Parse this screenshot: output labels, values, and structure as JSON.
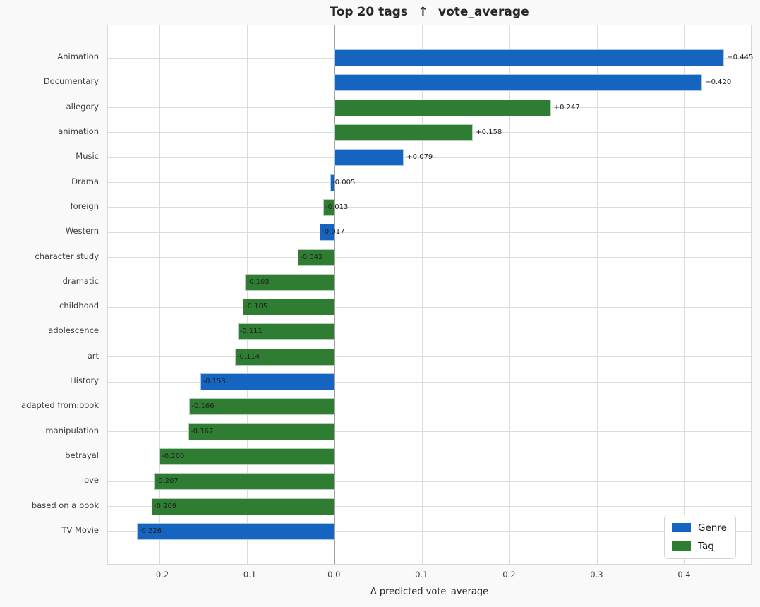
{
  "chart_data": {
    "type": "bar",
    "orientation": "horizontal",
    "title": "Top 20 tags  ↑  vote_average",
    "xlabel": "Δ predicted vote_average",
    "ylabel": "",
    "xlim": [
      -0.259,
      0.477
    ],
    "grid": true,
    "x_ticks": [
      {
        "value": -0.2,
        "label": "−0.2"
      },
      {
        "value": -0.1,
        "label": "−0.1"
      },
      {
        "value": 0.0,
        "label": "0.0"
      },
      {
        "value": 0.1,
        "label": "0.1"
      },
      {
        "value": 0.2,
        "label": "0.2"
      },
      {
        "value": 0.3,
        "label": "0.3"
      },
      {
        "value": 0.4,
        "label": "0.4"
      }
    ],
    "categories": [
      "Animation",
      "Documentary",
      "allegory",
      "animation",
      "Music",
      "Drama",
      "foreign",
      "Western",
      "character study",
      "dramatic",
      "childhood",
      "adolescence",
      "art",
      "History",
      "adapted from:book",
      "manipulation",
      "betrayal",
      "love",
      "based on a book",
      "TV Movie"
    ],
    "items": [
      {
        "label": "Animation",
        "value": 0.445,
        "value_label": "+0.445",
        "type": "genre"
      },
      {
        "label": "Documentary",
        "value": 0.42,
        "value_label": "+0.420",
        "type": "genre"
      },
      {
        "label": "allegory",
        "value": 0.247,
        "value_label": "+0.247",
        "type": "tag"
      },
      {
        "label": "animation",
        "value": 0.158,
        "value_label": "+0.158",
        "type": "tag"
      },
      {
        "label": "Music",
        "value": 0.079,
        "value_label": "+0.079",
        "type": "genre"
      },
      {
        "label": "Drama",
        "value": -0.005,
        "value_label": "-0.005",
        "type": "genre"
      },
      {
        "label": "foreign",
        "value": -0.013,
        "value_label": "-0.013",
        "type": "tag"
      },
      {
        "label": "Western",
        "value": -0.017,
        "value_label": "-0.017",
        "type": "genre"
      },
      {
        "label": "character study",
        "value": -0.042,
        "value_label": "-0.042",
        "type": "tag"
      },
      {
        "label": "dramatic",
        "value": -0.103,
        "value_label": "-0.103",
        "type": "tag"
      },
      {
        "label": "childhood",
        "value": -0.105,
        "value_label": "-0.105",
        "type": "tag"
      },
      {
        "label": "adolescence",
        "value": -0.111,
        "value_label": "-0.111",
        "type": "tag"
      },
      {
        "label": "art",
        "value": -0.114,
        "value_label": "-0.114",
        "type": "tag"
      },
      {
        "label": "History",
        "value": -0.153,
        "value_label": "-0.153",
        "type": "genre"
      },
      {
        "label": "adapted from:book",
        "value": -0.166,
        "value_label": "-0.166",
        "type": "tag"
      },
      {
        "label": "manipulation",
        "value": -0.167,
        "value_label": "-0.167",
        "type": "tag"
      },
      {
        "label": "betrayal",
        "value": -0.2,
        "value_label": "-0.200",
        "type": "tag"
      },
      {
        "label": "love",
        "value": -0.207,
        "value_label": "-0.207",
        "type": "tag"
      },
      {
        "label": "based on a book",
        "value": -0.209,
        "value_label": "-0.209",
        "type": "tag"
      },
      {
        "label": "TV Movie",
        "value": -0.226,
        "value_label": "-0.226",
        "type": "genre"
      }
    ],
    "colors": {
      "genre": "#1565c0",
      "tag": "#2e7d32"
    },
    "legend": {
      "position": "lower right",
      "items": [
        {
          "label": "Genre",
          "color_key": "genre"
        },
        {
          "label": "Tag",
          "color_key": "tag"
        }
      ]
    }
  }
}
